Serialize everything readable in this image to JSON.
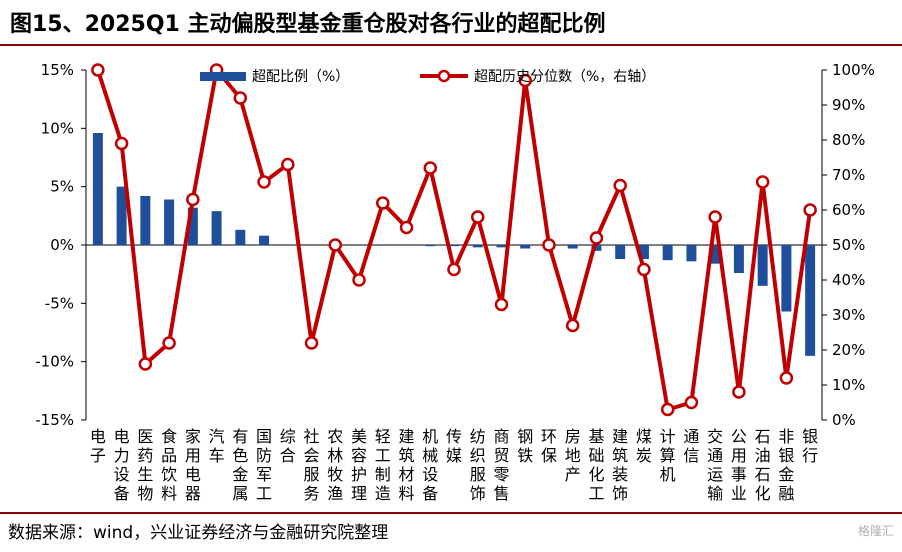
{
  "title": "图15、2025Q1 主动偏股型基金重仓股对各行业的超配比例",
  "source": "数据来源：wind，兴业证券经济与金融研究院整理",
  "watermark": "格隆汇",
  "colors": {
    "bar": "#1f4e9a",
    "line": "#c00000",
    "rule": "#8b0000"
  },
  "chart_data": {
    "type": "bar+line",
    "categories": [
      "电子",
      "电力设备",
      "医药生物",
      "食品饮料",
      "家用电器",
      "汽车",
      "有色金属",
      "国防军工",
      "综合",
      "社会服务",
      "农林牧渔",
      "美容护理",
      "轻工制造",
      "建筑材料",
      "机械设备",
      "传媒",
      "纺织服饰",
      "商贸零售",
      "钢铁",
      "环保",
      "房地产",
      "基础化工",
      "建筑装饰",
      "煤炭",
      "计算机",
      "通信",
      "交通运输",
      "公用事业",
      "石油石化",
      "非银金融",
      "银行"
    ],
    "series": [
      {
        "name": "超配比例（%）",
        "axis": "left",
        "kind": "bar",
        "values": [
          9.6,
          5.0,
          4.2,
          3.9,
          3.2,
          2.9,
          1.3,
          0.8,
          0,
          0,
          0,
          0,
          0,
          0,
          -0.1,
          -0.1,
          -0.2,
          -0.2,
          -0.3,
          -0.1,
          -0.3,
          -0.5,
          -1.2,
          -1.2,
          -1.3,
          -1.4,
          -1.6,
          -2.4,
          -3.5,
          -5.7,
          -9.5
        ]
      },
      {
        "name": "超配历史分位数（%，右轴）",
        "axis": "right",
        "kind": "line",
        "values": [
          100,
          79,
          16,
          22,
          63,
          100,
          92,
          68,
          73,
          22,
          50,
          40,
          62,
          55,
          72,
          43,
          58,
          33,
          97,
          50,
          27,
          52,
          67,
          43,
          3,
          5,
          58,
          8,
          68,
          12,
          60
        ]
      }
    ],
    "y_left": {
      "min": -15,
      "max": 15,
      "ticks": [
        "15%",
        "10%",
        "5%",
        "0%",
        "-5%",
        "-10%",
        "-15%"
      ]
    },
    "y_right": {
      "min": 0,
      "max": 100,
      "ticks": [
        "100%",
        "90%",
        "80%",
        "70%",
        "60%",
        "50%",
        "40%",
        "30%",
        "20%",
        "10%",
        "0%"
      ]
    },
    "legend_position": "top"
  }
}
